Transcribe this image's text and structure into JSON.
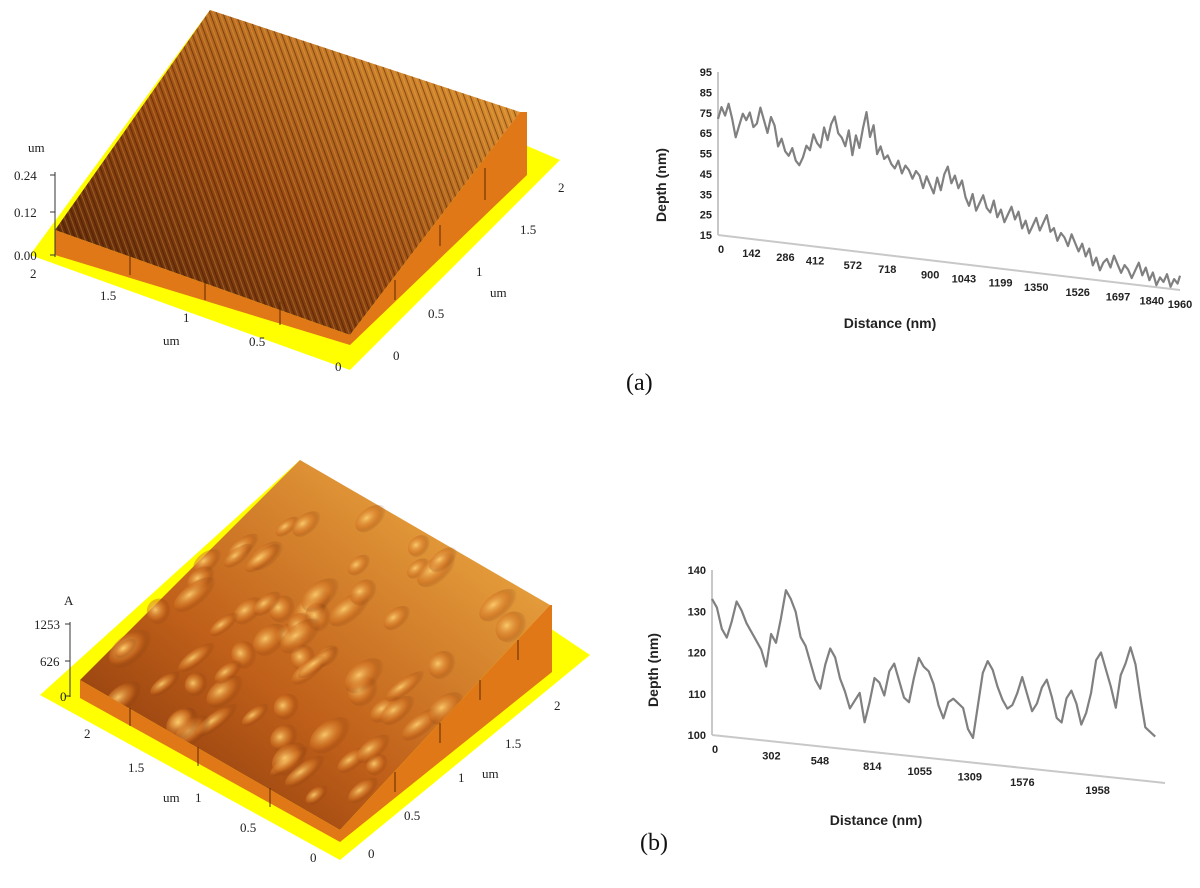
{
  "panels": [
    {
      "label": "(a)",
      "afm": {
        "z_unit": "um",
        "z_ticks": [
          "0.24",
          "0.12",
          "0.00"
        ],
        "x_unit": "um",
        "x_ticks": [
          "2",
          "1.5",
          "1",
          "0.5",
          "0"
        ],
        "y_unit": "um",
        "y_ticks": [
          "0",
          "0.5",
          "1",
          "1.5",
          "2"
        ]
      }
    },
    {
      "label": "(b)",
      "afm": {
        "z_unit": "A",
        "z_ticks": [
          "1253",
          "626",
          "0"
        ],
        "x_unit": "um",
        "x_ticks": [
          "2",
          "1.5",
          "1",
          "0.5",
          "0"
        ],
        "y_unit": "um",
        "y_ticks": [
          "0",
          "0.5",
          "1",
          "1.5",
          "2"
        ]
      }
    }
  ],
  "chart_data": [
    {
      "type": "line",
      "xlabel": "Distance (nm)",
      "ylabel": "Depth (nm)",
      "ylim": [
        15,
        95
      ],
      "y_ticks": [
        "95",
        "85",
        "75",
        "65",
        "55",
        "45",
        "35",
        "25",
        "15"
      ],
      "x_ticks": [
        "0",
        "142",
        "286",
        "412",
        "572",
        "718",
        "900",
        "1043",
        "1199",
        "1350",
        "1526",
        "1697",
        "1840",
        "1960"
      ],
      "xlim": [
        0,
        1960
      ],
      "series": [
        {
          "color": "#808080",
          "x": [
            0,
            15,
            30,
            45,
            60,
            75,
            90,
            105,
            120,
            135,
            150,
            165,
            180,
            195,
            210,
            225,
            240,
            255,
            270,
            285,
            300,
            315,
            330,
            345,
            360,
            375,
            390,
            405,
            420,
            435,
            450,
            465,
            480,
            495,
            510,
            525,
            540,
            555,
            570,
            585,
            600,
            615,
            630,
            645,
            660,
            675,
            690,
            705,
            720,
            735,
            750,
            765,
            780,
            795,
            810,
            825,
            840,
            855,
            870,
            885,
            900,
            915,
            930,
            945,
            960,
            975,
            990,
            1005,
            1020,
            1035,
            1050,
            1065,
            1080,
            1095,
            1110,
            1125,
            1140,
            1155,
            1170,
            1185,
            1200,
            1215,
            1230,
            1245,
            1260,
            1275,
            1290,
            1305,
            1320,
            1335,
            1350,
            1365,
            1380,
            1395,
            1410,
            1425,
            1440,
            1455,
            1470,
            1485,
            1500,
            1515,
            1530,
            1545,
            1560,
            1575,
            1590,
            1605,
            1620,
            1635,
            1650,
            1665,
            1680,
            1695,
            1710,
            1725,
            1740,
            1755,
            1770,
            1785,
            1800,
            1815,
            1830,
            1845,
            1860,
            1875,
            1890,
            1905,
            1920,
            1935,
            1950,
            1960
          ],
          "y": [
            72,
            78,
            74,
            80,
            73,
            64,
            70,
            76,
            73,
            77,
            70,
            72,
            80,
            74,
            68,
            76,
            72,
            62,
            66,
            60,
            58,
            62,
            56,
            54,
            58,
            64,
            62,
            70,
            66,
            64,
            74,
            68,
            76,
            80,
            72,
            70,
            66,
            74,
            62,
            72,
            66,
            76,
            84,
            72,
            78,
            64,
            68,
            62,
            64,
            60,
            58,
            62,
            56,
            60,
            58,
            54,
            58,
            56,
            50,
            56,
            52,
            48,
            56,
            50,
            58,
            62,
            54,
            58,
            52,
            56,
            48,
            44,
            50,
            42,
            46,
            50,
            44,
            42,
            48,
            40,
            44,
            38,
            42,
            46,
            40,
            44,
            36,
            40,
            34,
            38,
            42,
            36,
            40,
            44,
            36,
            38,
            32,
            36,
            34,
            30,
            36,
            32,
            28,
            32,
            26,
            30,
            22,
            26,
            20,
            24,
            26,
            22,
            28,
            24,
            20,
            24,
            22,
            18,
            22,
            26,
            20,
            24,
            18,
            22,
            16,
            20,
            18,
            22,
            16,
            20,
            18,
            22
          ]
        }
      ]
    },
    {
      "type": "line",
      "xlabel": "Distance (nm)",
      "ylabel": "Depth (nm)",
      "ylim": [
        100,
        140
      ],
      "y_ticks": [
        "140",
        "130",
        "120",
        "110",
        "100"
      ],
      "x_ticks": [
        "0",
        "302",
        "548",
        "814",
        "1055",
        "1309",
        "1576",
        "1958"
      ],
      "xlim": [
        0,
        2300
      ],
      "series": [
        {
          "color": "#808080",
          "x": [
            0,
            25,
            50,
            75,
            100,
            125,
            150,
            175,
            200,
            225,
            250,
            275,
            300,
            325,
            350,
            375,
            400,
            425,
            450,
            475,
            500,
            525,
            550,
            575,
            600,
            625,
            650,
            675,
            700,
            725,
            750,
            775,
            800,
            825,
            850,
            875,
            900,
            925,
            950,
            975,
            1000,
            1025,
            1050,
            1075,
            1100,
            1125,
            1150,
            1175,
            1200,
            1225,
            1250,
            1275,
            1300,
            1325,
            1350,
            1375,
            1400,
            1425,
            1450,
            1475,
            1500,
            1525,
            1550,
            1575,
            1600,
            1625,
            1650,
            1675,
            1700,
            1725,
            1750,
            1775,
            1800,
            1825,
            1850,
            1875,
            1900,
            1925,
            1950,
            1975,
            2000,
            2025,
            2050,
            2075,
            2100,
            2125,
            2150,
            2175,
            2200,
            2225,
            2250
          ],
          "y": [
            133,
            131,
            126,
            124,
            128,
            133,
            131,
            128,
            126,
            124,
            122,
            118,
            126,
            124,
            130,
            137,
            135,
            132,
            126,
            124,
            120,
            116,
            114,
            120,
            124,
            122,
            117,
            114,
            110,
            112,
            114,
            107,
            112,
            118,
            117,
            114,
            120,
            122,
            118,
            114,
            113,
            119,
            124,
            122,
            121,
            118,
            113,
            110,
            114,
            115,
            114,
            113,
            108,
            106,
            114,
            122,
            125,
            123,
            119,
            116,
            114,
            115,
            118,
            122,
            118,
            114,
            116,
            120,
            122,
            118,
            113,
            112,
            118,
            120,
            117,
            112,
            115,
            120,
            128,
            130,
            126,
            122,
            117,
            125,
            128,
            132,
            128,
            120,
            113,
            112,
            111
          ]
        }
      ]
    }
  ]
}
